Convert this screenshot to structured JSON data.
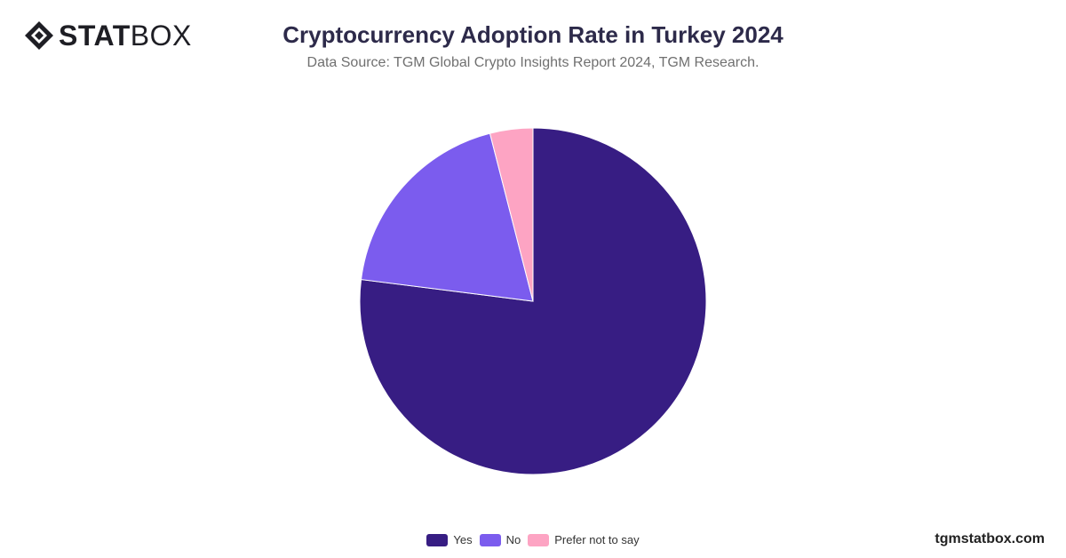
{
  "brand": {
    "logo_bold": "STAT",
    "logo_light": "BOX",
    "footer": "tgmstatbox.com"
  },
  "header": {
    "title": "Cryptocurrency Adoption Rate in Turkey 2024",
    "subtitle": "Data Source: TGM Global Crypto Insights Report 2024, TGM Research."
  },
  "chart_data": {
    "type": "pie",
    "title": "Cryptocurrency Adoption Rate in Turkey 2024",
    "categories": [
      "Yes",
      "No",
      "Prefer not to say"
    ],
    "values": [
      77,
      19,
      4
    ],
    "colors": [
      "#371d83",
      "#7b5cee",
      "#fda4c3"
    ],
    "legend_position": "bottom"
  }
}
